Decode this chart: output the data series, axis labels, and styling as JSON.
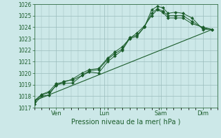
{
  "bg_color": "#cce8e8",
  "grid_color": "#99bbbb",
  "line_color": "#1a5c2a",
  "marker_color": "#1a5c2a",
  "title": "Pression niveau de la mer( hPa )",
  "ylim": [
    1017,
    1026
  ],
  "yticks": [
    1017,
    1018,
    1019,
    1020,
    1021,
    1022,
    1023,
    1024,
    1025,
    1026
  ],
  "xtick_labels": [
    "Ven",
    "Lun",
    "Sam",
    "Dim"
  ],
  "xtick_positions": [
    0.12,
    0.38,
    0.69,
    0.92
  ],
  "series": [
    {
      "x": [
        0.0,
        0.04,
        0.08,
        0.12,
        0.16,
        0.21,
        0.26,
        0.3,
        0.35,
        0.4,
        0.44,
        0.48,
        0.52,
        0.56,
        0.6,
        0.64,
        0.67,
        0.7,
        0.73,
        0.77,
        0.81,
        0.86,
        0.92,
        0.97
      ],
      "y": [
        1017.3,
        1018.0,
        1018.1,
        1019.0,
        1019.1,
        1019.15,
        1019.8,
        1020.1,
        1020.0,
        1021.0,
        1021.5,
        1022.0,
        1023.0,
        1023.2,
        1024.0,
        1025.5,
        1025.8,
        1025.7,
        1025.2,
        1025.3,
        1025.2,
        1024.8,
        1023.8,
        1023.8
      ],
      "has_markers": true
    },
    {
      "x": [
        0.0,
        0.04,
        0.08,
        0.12,
        0.16,
        0.21,
        0.26,
        0.3,
        0.35,
        0.4,
        0.44,
        0.48,
        0.52,
        0.56,
        0.6,
        0.64,
        0.67,
        0.7,
        0.73,
        0.77,
        0.81,
        0.86,
        0.92,
        0.97
      ],
      "y": [
        1017.5,
        1018.1,
        1018.3,
        1018.9,
        1019.3,
        1019.4,
        1019.8,
        1020.2,
        1020.3,
        1021.2,
        1021.7,
        1022.1,
        1023.1,
        1023.3,
        1024.0,
        1025.2,
        1025.6,
        1025.4,
        1025.0,
        1025.0,
        1025.0,
        1024.5,
        1023.9,
        1023.8
      ],
      "has_markers": true
    },
    {
      "x": [
        0.0,
        0.04,
        0.08,
        0.12,
        0.16,
        0.21,
        0.26,
        0.3,
        0.35,
        0.4,
        0.44,
        0.48,
        0.52,
        0.56,
        0.6,
        0.64,
        0.67,
        0.7,
        0.73,
        0.77,
        0.81,
        0.86,
        0.92,
        0.97
      ],
      "y": [
        1017.6,
        1018.15,
        1018.4,
        1019.1,
        1019.2,
        1019.5,
        1020.0,
        1020.3,
        1020.4,
        1021.3,
        1021.85,
        1022.3,
        1023.0,
        1023.5,
        1024.1,
        1025.0,
        1025.5,
        1025.3,
        1024.8,
        1024.8,
        1024.8,
        1024.3,
        1024.0,
        1023.8
      ],
      "has_markers": true
    },
    {
      "x": [
        0.0,
        0.97
      ],
      "y": [
        1017.6,
        1023.8
      ],
      "has_markers": false
    }
  ]
}
